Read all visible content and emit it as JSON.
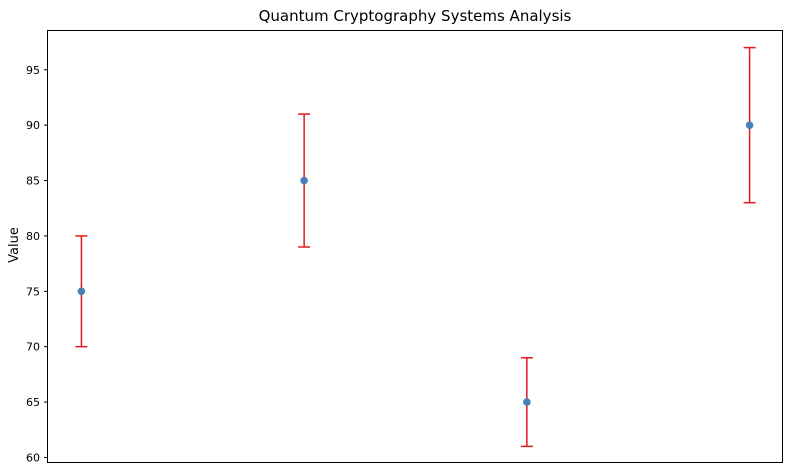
{
  "chart_data": {
    "type": "scatter",
    "title": "Quantum Cryptography Systems Analysis",
    "xlabel": "",
    "ylabel": "Value",
    "ylim": [
      59.5,
      98.5
    ],
    "yticks": [
      60,
      65,
      70,
      75,
      80,
      85,
      90,
      95
    ],
    "xlim": [
      -0.15,
      3.15
    ],
    "grid": false,
    "points": [
      {
        "x": 0,
        "y": 75,
        "err_low": 5,
        "err_high": 5
      },
      {
        "x": 1,
        "y": 85,
        "err_low": 6,
        "err_high": 6
      },
      {
        "x": 2,
        "y": 65,
        "err_low": 4,
        "err_high": 4
      },
      {
        "x": 3,
        "y": 90,
        "err_low": 7,
        "err_high": 7
      }
    ],
    "colors": {
      "marker": "#4682b4",
      "error_bar": "#e31a1c",
      "axis": "#000000"
    }
  }
}
